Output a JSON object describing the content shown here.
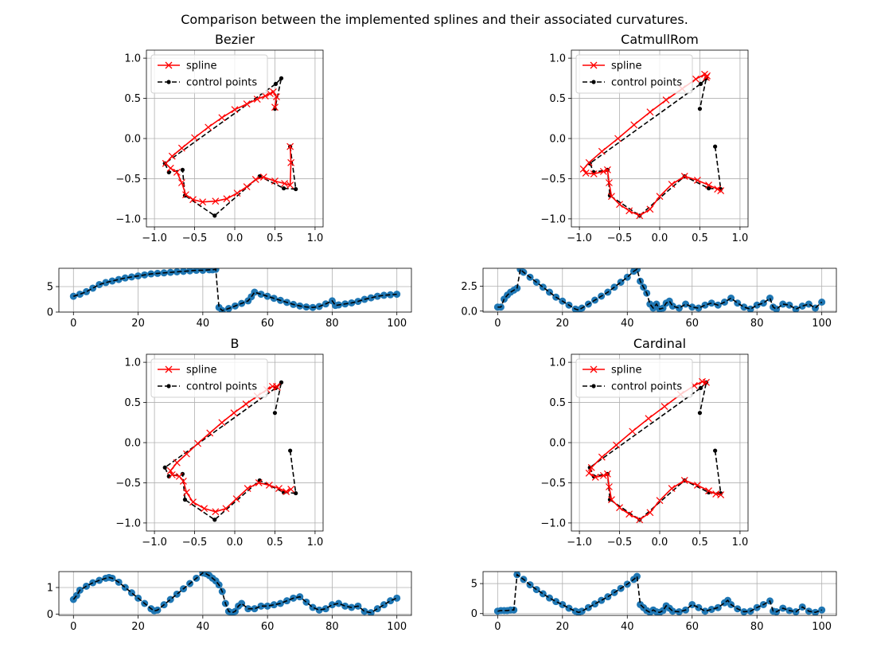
{
  "figure": {
    "suptitle": "Comparison between the implemented splines and their associated curvatures."
  },
  "colors": {
    "spline": "#ff0000",
    "control": "#000000",
    "curvature": "#1f77b4",
    "grid": "#b0b0b0"
  },
  "chart_data": [
    {
      "panel": "spline-bezier",
      "type": "line",
      "title": "Bezier",
      "xlim": [
        -1.1,
        1.1
      ],
      "ylim": [
        -1.1,
        1.1
      ],
      "xticks": [
        -1.0,
        -0.5,
        0.0,
        0.5,
        1.0
      ],
      "yticks": [
        -1.0,
        -0.5,
        0.0,
        0.5,
        1.0
      ],
      "xtick_labels": [
        "−1.0",
        "−0.5",
        "0.0",
        "0.5",
        "1.0"
      ],
      "ytick_labels": [
        "−1.0",
        "−0.5",
        "0.0",
        "0.5",
        "1.0"
      ],
      "grid": true,
      "legend": "upper-left",
      "legend_entries": [
        "spline",
        "control points"
      ],
      "control_points": {
        "x": [
          0.69,
          0.76,
          0.61,
          0.31,
          -0.25,
          -0.62,
          -0.65,
          -0.82,
          -0.87,
          0.51,
          0.58,
          0.5
        ],
        "y": [
          -0.1,
          -0.63,
          -0.62,
          -0.47,
          -0.96,
          -0.71,
          -0.39,
          -0.42,
          -0.31,
          0.68,
          0.75,
          0.37
        ]
      },
      "spline": {
        "x": [
          0.69,
          0.7,
          0.69,
          0.62,
          0.5,
          0.36,
          0.26,
          0.15,
          0.03,
          -0.1,
          -0.24,
          -0.4,
          -0.52,
          -0.61,
          -0.66,
          -0.72,
          -0.8,
          -0.86,
          -0.78,
          -0.66,
          -0.5,
          -0.33,
          -0.16,
          0.0,
          0.15,
          0.28,
          0.38,
          0.44,
          0.48,
          0.52,
          0.5
        ],
        "y": [
          -0.1,
          -0.3,
          -0.58,
          -0.56,
          -0.53,
          -0.48,
          -0.51,
          -0.6,
          -0.68,
          -0.75,
          -0.78,
          -0.79,
          -0.76,
          -0.7,
          -0.55,
          -0.42,
          -0.37,
          -0.31,
          -0.22,
          -0.12,
          0.01,
          0.14,
          0.26,
          0.36,
          0.43,
          0.49,
          0.53,
          0.56,
          0.58,
          0.52,
          0.39
        ]
      }
    },
    {
      "panel": "curvature-bezier",
      "type": "line",
      "title": "",
      "xlim": [
        -4.5,
        104.5
      ],
      "ylim": [
        0,
        8.6
      ],
      "xticks": [
        0,
        20,
        40,
        60,
        80,
        100
      ],
      "yticks": [
        0,
        5
      ],
      "xtick_labels": [
        "0",
        "20",
        "40",
        "60",
        "80",
        "100"
      ],
      "ytick_labels": [
        "0",
        "5"
      ],
      "grid": true,
      "x": [
        0,
        2,
        4,
        6,
        8,
        10,
        12,
        14,
        16,
        18,
        20,
        22,
        24,
        26,
        28,
        30,
        32,
        34,
        36,
        38,
        40,
        42,
        43,
        44,
        45,
        46,
        48,
        50,
        52,
        54,
        55,
        56,
        58,
        60,
        62,
        64,
        66,
        68,
        70,
        72,
        74,
        76,
        78,
        80,
        81,
        82,
        84,
        86,
        88,
        90,
        92,
        94,
        96,
        98,
        100
      ],
      "y": [
        3.1,
        3.5,
        4.0,
        4.7,
        5.4,
        5.8,
        6.1,
        6.4,
        6.7,
        6.9,
        7.1,
        7.3,
        7.5,
        7.6,
        7.7,
        7.8,
        7.9,
        8.0,
        8.1,
        8.2,
        8.2,
        8.3,
        8.3,
        8.4,
        0.9,
        0.3,
        0.7,
        1.2,
        1.7,
        2.2,
        3.0,
        3.9,
        3.5,
        3.1,
        2.7,
        2.3,
        1.9,
        1.5,
        1.2,
        1.0,
        0.9,
        1.1,
        1.6,
        2.2,
        1.3,
        1.4,
        1.6,
        1.8,
        2.1,
        2.5,
        2.8,
        3.1,
        3.3,
        3.4,
        3.5
      ]
    },
    {
      "panel": "spline-catmullrom",
      "type": "line",
      "title": "CatmullRom",
      "xlim": [
        -1.1,
        1.1
      ],
      "ylim": [
        -1.1,
        1.1
      ],
      "xticks": [
        -1.0,
        -0.5,
        0.0,
        0.5,
        1.0
      ],
      "yticks": [
        -1.0,
        -0.5,
        0.0,
        0.5,
        1.0
      ],
      "xtick_labels": [
        "−1.0",
        "−0.5",
        "0.0",
        "0.5",
        "1.0"
      ],
      "ytick_labels": [
        "−1.0",
        "−0.5",
        "0.0",
        "0.5",
        "1.0"
      ],
      "grid": true,
      "legend": "upper-left",
      "legend_entries": [
        "spline",
        "control points"
      ],
      "control_points": {
        "x": [
          0.69,
          0.76,
          0.61,
          0.31,
          -0.25,
          -0.62,
          -0.65,
          -0.82,
          -0.87,
          0.51,
          0.58,
          0.5
        ],
        "y": [
          -0.1,
          -0.63,
          -0.62,
          -0.47,
          -0.96,
          -0.71,
          -0.39,
          -0.42,
          -0.31,
          0.68,
          0.75,
          0.37
        ]
      },
      "spline": {
        "x": [
          0.76,
          0.72,
          0.61,
          0.47,
          0.31,
          0.15,
          0.0,
          -0.12,
          -0.25,
          -0.38,
          -0.5,
          -0.6,
          -0.63,
          -0.65,
          -0.7,
          -0.82,
          -0.92,
          -0.95,
          -0.88,
          -0.72,
          -0.52,
          -0.32,
          -0.12,
          0.08,
          0.28,
          0.45,
          0.56,
          0.59,
          0.58
        ],
        "y": [
          -0.65,
          -0.63,
          -0.58,
          -0.52,
          -0.47,
          -0.57,
          -0.72,
          -0.88,
          -0.96,
          -0.9,
          -0.82,
          -0.72,
          -0.55,
          -0.39,
          -0.41,
          -0.44,
          -0.43,
          -0.38,
          -0.3,
          -0.16,
          0.0,
          0.17,
          0.33,
          0.48,
          0.62,
          0.74,
          0.8,
          0.78,
          0.76
        ]
      }
    },
    {
      "panel": "curvature-catmullrom",
      "type": "line",
      "title": "",
      "xlim": [
        -4.5,
        104.5
      ],
      "ylim": [
        -0.1,
        4.3
      ],
      "xticks": [
        0,
        20,
        40,
        60,
        80,
        100
      ],
      "yticks": [
        0.0,
        2.5
      ],
      "xtick_labels": [
        "0",
        "20",
        "40",
        "60",
        "80",
        "100"
      ],
      "ytick_labels": [
        "0.0",
        "2.5"
      ],
      "grid": true,
      "x": [
        0,
        1,
        2,
        3,
        4,
        5,
        6,
        7,
        8,
        10,
        12,
        14,
        16,
        18,
        20,
        22,
        24,
        25,
        26,
        28,
        30,
        32,
        34,
        36,
        38,
        40,
        42,
        43,
        44,
        45,
        46,
        47,
        48,
        49,
        50,
        51,
        52,
        53,
        54,
        56,
        58,
        60,
        62,
        64,
        66,
        68,
        70,
        72,
        74,
        76,
        78,
        80,
        82,
        84,
        85,
        86,
        88,
        90,
        92,
        94,
        96,
        98,
        100
      ],
      "y": [
        0.4,
        0.4,
        1.2,
        1.6,
        1.9,
        2.1,
        2.3,
        4.2,
        3.9,
        3.4,
        2.9,
        2.4,
        1.9,
        1.4,
        1.0,
        0.6,
        0.2,
        0.1,
        0.3,
        0.7,
        1.1,
        1.5,
        1.9,
        2.4,
        2.9,
        3.4,
        4.0,
        4.2,
        3.0,
        2.4,
        1.8,
        0.7,
        0.3,
        0.7,
        0.2,
        0.3,
        0.8,
        1.0,
        0.5,
        0.3,
        0.7,
        0.4,
        0.3,
        0.6,
        0.8,
        0.6,
        0.9,
        1.3,
        0.8,
        0.4,
        0.2,
        0.6,
        0.8,
        1.3,
        0.4,
        0.2,
        0.7,
        0.6,
        0.2,
        0.5,
        0.7,
        0.3,
        0.9
      ]
    },
    {
      "panel": "spline-b",
      "type": "line",
      "title": "B",
      "xlim": [
        -1.1,
        1.1
      ],
      "ylim": [
        -1.1,
        1.1
      ],
      "xticks": [
        -1.0,
        -0.5,
        0.0,
        0.5,
        1.0
      ],
      "yticks": [
        -1.0,
        -0.5,
        0.0,
        0.5,
        1.0
      ],
      "xtick_labels": [
        "−1.0",
        "−0.5",
        "0.0",
        "0.5",
        "1.0"
      ],
      "ytick_labels": [
        "−1.0",
        "−0.5",
        "0.0",
        "0.5",
        "1.0"
      ],
      "grid": true,
      "legend": "upper-left",
      "legend_entries": [
        "spline",
        "control points"
      ],
      "control_points": {
        "x": [
          0.69,
          0.76,
          0.61,
          0.31,
          -0.25,
          -0.62,
          -0.65,
          -0.82,
          -0.87,
          0.51,
          0.58,
          0.5
        ],
        "y": [
          -0.1,
          -0.63,
          -0.62,
          -0.47,
          -0.96,
          -0.71,
          -0.39,
          -0.42,
          -0.31,
          0.68,
          0.75,
          0.37
        ]
      },
      "spline": {
        "x": [
          0.7,
          0.64,
          0.55,
          0.43,
          0.3,
          0.16,
          0.02,
          -0.11,
          -0.24,
          -0.38,
          -0.52,
          -0.6,
          -0.64,
          -0.69,
          -0.78,
          -0.8,
          -0.72,
          -0.6,
          -0.46,
          -0.31,
          -0.16,
          -0.01,
          0.14,
          0.28,
          0.4,
          0.47,
          0.52,
          0.53
        ],
        "y": [
          -0.58,
          -0.61,
          -0.57,
          -0.53,
          -0.5,
          -0.57,
          -0.7,
          -0.82,
          -0.86,
          -0.82,
          -0.74,
          -0.62,
          -0.48,
          -0.42,
          -0.4,
          -0.35,
          -0.25,
          -0.14,
          -0.01,
          0.12,
          0.25,
          0.37,
          0.48,
          0.58,
          0.66,
          0.7,
          0.7,
          0.69
        ]
      }
    },
    {
      "panel": "curvature-b",
      "type": "line",
      "title": "",
      "xlim": [
        -4.5,
        104.5
      ],
      "ylim": [
        -0.05,
        1.6
      ],
      "xticks": [
        0,
        20,
        40,
        60,
        80,
        100
      ],
      "yticks": [
        0,
        1
      ],
      "xtick_labels": [
        "0",
        "20",
        "40",
        "60",
        "80",
        "100"
      ],
      "ytick_labels": [
        "0",
        "1"
      ],
      "grid": true,
      "x": [
        0,
        1,
        2,
        4,
        6,
        8,
        10,
        11,
        12,
        14,
        16,
        18,
        20,
        22,
        24,
        25,
        26,
        28,
        30,
        32,
        34,
        36,
        38,
        40,
        41,
        42,
        43,
        44,
        45,
        46,
        47,
        48,
        49,
        50,
        51,
        52,
        54,
        56,
        58,
        60,
        62,
        64,
        66,
        68,
        70,
        72,
        74,
        76,
        78,
        80,
        82,
        84,
        86,
        88,
        90,
        92,
        94,
        96,
        98,
        100
      ],
      "y": [
        0.55,
        0.7,
        0.9,
        1.05,
        1.18,
        1.27,
        1.35,
        1.38,
        1.35,
        1.2,
        1.0,
        0.8,
        0.6,
        0.4,
        0.2,
        0.12,
        0.15,
        0.35,
        0.55,
        0.75,
        0.95,
        1.15,
        1.35,
        1.55,
        1.52,
        1.45,
        1.35,
        1.25,
        1.1,
        0.85,
        0.4,
        0.1,
        0.05,
        0.1,
        0.3,
        0.4,
        0.2,
        0.2,
        0.3,
        0.3,
        0.35,
        0.4,
        0.5,
        0.6,
        0.65,
        0.45,
        0.25,
        0.15,
        0.2,
        0.35,
        0.4,
        0.3,
        0.25,
        0.3,
        0.1,
        0.05,
        0.2,
        0.35,
        0.5,
        0.6
      ]
    },
    {
      "panel": "spline-cardinal",
      "type": "line",
      "title": "Cardinal",
      "xlim": [
        -1.1,
        1.1
      ],
      "ylim": [
        -1.1,
        1.1
      ],
      "xticks": [
        -1.0,
        -0.5,
        0.0,
        0.5,
        1.0
      ],
      "yticks": [
        -1.0,
        -0.5,
        0.0,
        0.5,
        1.0
      ],
      "xtick_labels": [
        "−1.0",
        "−0.5",
        "0.0",
        "0.5",
        "1.0"
      ],
      "ytick_labels": [
        "−1.0",
        "−0.5",
        "0.0",
        "0.5",
        "1.0"
      ],
      "grid": true,
      "legend": "upper-left",
      "legend_entries": [
        "spline",
        "control points"
      ],
      "control_points": {
        "x": [
          0.69,
          0.76,
          0.61,
          0.31,
          -0.25,
          -0.62,
          -0.65,
          -0.82,
          -0.87,
          0.51,
          0.58,
          0.5
        ],
        "y": [
          -0.1,
          -0.63,
          -0.62,
          -0.47,
          -0.96,
          -0.71,
          -0.39,
          -0.42,
          -0.31,
          0.68,
          0.75,
          0.37
        ]
      },
      "spline": {
        "x": [
          0.76,
          0.7,
          0.61,
          0.47,
          0.31,
          0.15,
          0.0,
          -0.12,
          -0.25,
          -0.38,
          -0.5,
          -0.6,
          -0.63,
          -0.65,
          -0.7,
          -0.8,
          -0.88,
          -0.85,
          -0.72,
          -0.54,
          -0.34,
          -0.14,
          0.06,
          0.26,
          0.43,
          0.53,
          0.58
        ],
        "y": [
          -0.65,
          -0.64,
          -0.6,
          -0.53,
          -0.47,
          -0.57,
          -0.72,
          -0.87,
          -0.96,
          -0.89,
          -0.81,
          -0.71,
          -0.55,
          -0.39,
          -0.41,
          -0.43,
          -0.38,
          -0.31,
          -0.18,
          -0.03,
          0.14,
          0.3,
          0.45,
          0.6,
          0.71,
          0.76,
          0.75
        ]
      }
    },
    {
      "panel": "curvature-cardinal",
      "type": "line",
      "title": "",
      "xlim": [
        -4.5,
        104.5
      ],
      "ylim": [
        -0.3,
        7.0
      ],
      "xticks": [
        0,
        20,
        40,
        60,
        80,
        100
      ],
      "yticks": [
        0,
        5
      ],
      "xtick_labels": [
        "0",
        "20",
        "40",
        "60",
        "80",
        "100"
      ],
      "ytick_labels": [
        "0",
        "5"
      ],
      "grid": true,
      "x": [
        0,
        1,
        2,
        3,
        4,
        5,
        6,
        8,
        10,
        12,
        14,
        16,
        18,
        20,
        22,
        24,
        25,
        26,
        28,
        30,
        32,
        34,
        36,
        38,
        40,
        42,
        43,
        44,
        45,
        46,
        47,
        48,
        49,
        50,
        51,
        52,
        53,
        54,
        56,
        58,
        60,
        62,
        64,
        66,
        68,
        70,
        71,
        72,
        74,
        76,
        78,
        80,
        82,
        84,
        85,
        86,
        88,
        90,
        92,
        94,
        96,
        98,
        100
      ],
      "y": [
        0.4,
        0.5,
        0.5,
        0.5,
        0.6,
        0.6,
        6.5,
        5.7,
        4.8,
        4.0,
        3.3,
        2.6,
        2.0,
        1.5,
        0.9,
        0.4,
        0.2,
        0.4,
        1.0,
        1.6,
        2.2,
        2.8,
        3.5,
        4.2,
        4.9,
        5.7,
        6.2,
        1.5,
        1.0,
        0.5,
        0.2,
        0.6,
        0.3,
        0.2,
        0.5,
        1.3,
        0.9,
        0.4,
        0.3,
        0.6,
        1.5,
        1.0,
        0.4,
        0.7,
        1.0,
        1.8,
        2.2,
        1.5,
        0.8,
        0.3,
        0.4,
        1.0,
        1.5,
        2.1,
        0.4,
        0.3,
        0.9,
        0.5,
        0.3,
        1.1,
        0.4,
        0.2,
        0.6
      ]
    }
  ]
}
